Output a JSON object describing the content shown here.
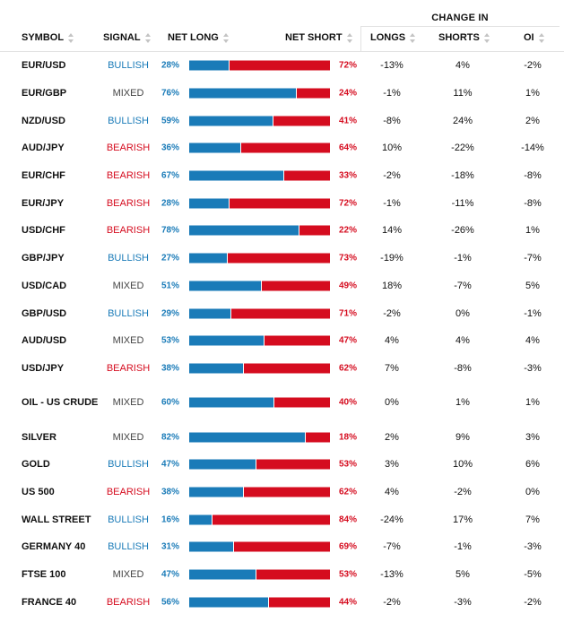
{
  "colors": {
    "long": "#1a7bb8",
    "short": "#d50c1f",
    "bullish": "#1a7bb8",
    "bearish": "#d50c1f",
    "mixed": "#444444"
  },
  "header": {
    "change_in": "CHANGE IN",
    "symbol": "SYMBOL",
    "signal": "SIGNAL",
    "net_long": "NET LONG",
    "net_short": "NET SHORT",
    "longs": "LONGS",
    "shorts": "SHORTS",
    "oi": "OI",
    "sort_icon": "sort-icon"
  },
  "rows": [
    {
      "symbol": "EUR/USD",
      "signal": "BULLISH",
      "net_long": "28%",
      "net_long_value": 28,
      "net_short": "72%",
      "longs": "-13%",
      "shorts": "4%",
      "oi": "-2%"
    },
    {
      "symbol": "EUR/GBP",
      "signal": "MIXED",
      "net_long": "76%",
      "net_long_value": 76,
      "net_short": "24%",
      "longs": "-1%",
      "shorts": "11%",
      "oi": "1%"
    },
    {
      "symbol": "NZD/USD",
      "signal": "BULLISH",
      "net_long": "59%",
      "net_long_value": 59,
      "net_short": "41%",
      "longs": "-8%",
      "shorts": "24%",
      "oi": "2%"
    },
    {
      "symbol": "AUD/JPY",
      "signal": "BEARISH",
      "net_long": "36%",
      "net_long_value": 36,
      "net_short": "64%",
      "longs": "10%",
      "shorts": "-22%",
      "oi": "-14%"
    },
    {
      "symbol": "EUR/CHF",
      "signal": "BEARISH",
      "net_long": "67%",
      "net_long_value": 67,
      "net_short": "33%",
      "longs": "-2%",
      "shorts": "-18%",
      "oi": "-8%"
    },
    {
      "symbol": "EUR/JPY",
      "signal": "BEARISH",
      "net_long": "28%",
      "net_long_value": 28,
      "net_short": "72%",
      "longs": "-1%",
      "shorts": "-11%",
      "oi": "-8%"
    },
    {
      "symbol": "USD/CHF",
      "signal": "BEARISH",
      "net_long": "78%",
      "net_long_value": 78,
      "net_short": "22%",
      "longs": "14%",
      "shorts": "-26%",
      "oi": "1%"
    },
    {
      "symbol": "GBP/JPY",
      "signal": "BULLISH",
      "net_long": "27%",
      "net_long_value": 27,
      "net_short": "73%",
      "longs": "-19%",
      "shorts": "-1%",
      "oi": "-7%"
    },
    {
      "symbol": "USD/CAD",
      "signal": "MIXED",
      "net_long": "51%",
      "net_long_value": 51,
      "net_short": "49%",
      "longs": "18%",
      "shorts": "-7%",
      "oi": "5%"
    },
    {
      "symbol": "GBP/USD",
      "signal": "BULLISH",
      "net_long": "29%",
      "net_long_value": 29,
      "net_short": "71%",
      "longs": "-2%",
      "shorts": "0%",
      "oi": "-1%"
    },
    {
      "symbol": "AUD/USD",
      "signal": "MIXED",
      "net_long": "53%",
      "net_long_value": 53,
      "net_short": "47%",
      "longs": "4%",
      "shorts": "4%",
      "oi": "4%"
    },
    {
      "symbol": "USD/JPY",
      "signal": "BEARISH",
      "net_long": "38%",
      "net_long_value": 38,
      "net_short": "62%",
      "longs": "7%",
      "shorts": "-8%",
      "oi": "-3%"
    },
    {
      "symbol": "OIL - US CRUDE",
      "signal": "MIXED",
      "net_long": "60%",
      "net_long_value": 60,
      "net_short": "40%",
      "longs": "0%",
      "shorts": "1%",
      "oi": "1%"
    },
    {
      "symbol": "SILVER",
      "signal": "MIXED",
      "net_long": "82%",
      "net_long_value": 82,
      "net_short": "18%",
      "longs": "2%",
      "shorts": "9%",
      "oi": "3%"
    },
    {
      "symbol": "GOLD",
      "signal": "BULLISH",
      "net_long": "47%",
      "net_long_value": 47,
      "net_short": "53%",
      "longs": "3%",
      "shorts": "10%",
      "oi": "6%"
    },
    {
      "symbol": "US 500",
      "signal": "BEARISH",
      "net_long": "38%",
      "net_long_value": 38,
      "net_short": "62%",
      "longs": "4%",
      "shorts": "-2%",
      "oi": "0%"
    },
    {
      "symbol": "WALL STREET",
      "signal": "BULLISH",
      "net_long": "16%",
      "net_long_value": 16,
      "net_short": "84%",
      "longs": "-24%",
      "shorts": "17%",
      "oi": "7%"
    },
    {
      "symbol": "GERMANY 40",
      "signal": "BULLISH",
      "net_long": "31%",
      "net_long_value": 31,
      "net_short": "69%",
      "longs": "-7%",
      "shorts": "-1%",
      "oi": "-3%"
    },
    {
      "symbol": "FTSE 100",
      "signal": "MIXED",
      "net_long": "47%",
      "net_long_value": 47,
      "net_short": "53%",
      "longs": "-13%",
      "shorts": "5%",
      "oi": "-5%"
    },
    {
      "symbol": "FRANCE 40",
      "signal": "BEARISH",
      "net_long": "56%",
      "net_long_value": 56,
      "net_short": "44%",
      "longs": "-2%",
      "shorts": "-3%",
      "oi": "-2%"
    }
  ]
}
